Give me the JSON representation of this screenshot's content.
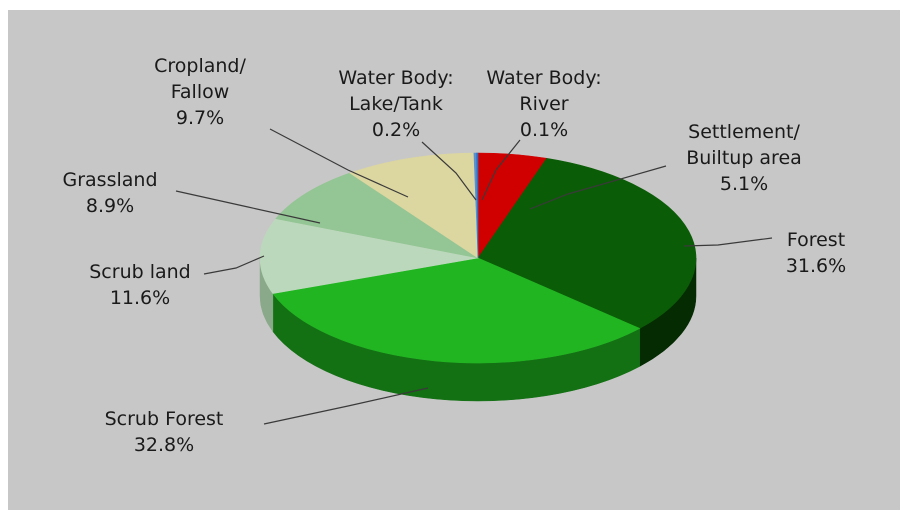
{
  "chart_data": {
    "type": "pie",
    "title": "",
    "slices": [
      {
        "lines": [
          "Settlement/",
          "Builtup area"
        ],
        "value": 5.1,
        "pct": "5.1%",
        "color": "#d10000",
        "side": "#880000"
      },
      {
        "lines": [
          "Forest"
        ],
        "value": 31.6,
        "pct": "31.6%",
        "color": "#0b5c07",
        "side": "#042b02"
      },
      {
        "lines": [
          "Scrub Forest"
        ],
        "value": 32.8,
        "pct": "32.8%",
        "color": "#22b522",
        "side": "#137013"
      },
      {
        "lines": [
          "Scrub land"
        ],
        "value": 11.6,
        "pct": "11.6%",
        "color": "#bcd8bc",
        "side": "#8aa98a"
      },
      {
        "lines": [
          "Grassland"
        ],
        "value": 8.9,
        "pct": "8.9%",
        "color": "#94c594",
        "side": "#6a946a"
      },
      {
        "lines": [
          "Cropland/",
          "Fallow"
        ],
        "value": 9.7,
        "pct": "9.7%",
        "color": "#dcd6a0",
        "side": "#aaa470"
      },
      {
        "lines": [
          "Water Body:",
          "Lake/Tank"
        ],
        "value": 0.2,
        "pct": "0.2%",
        "color": "#5b8fd0",
        "side": "#3a6aa0"
      },
      {
        "lines": [
          "Water Body:",
          "River"
        ],
        "value": 0.1,
        "pct": "0.1%",
        "color": "#2f6fbf",
        "side": "#1f4f8f"
      }
    ],
    "legend": "none",
    "data_labels": "outside with leader lines"
  }
}
